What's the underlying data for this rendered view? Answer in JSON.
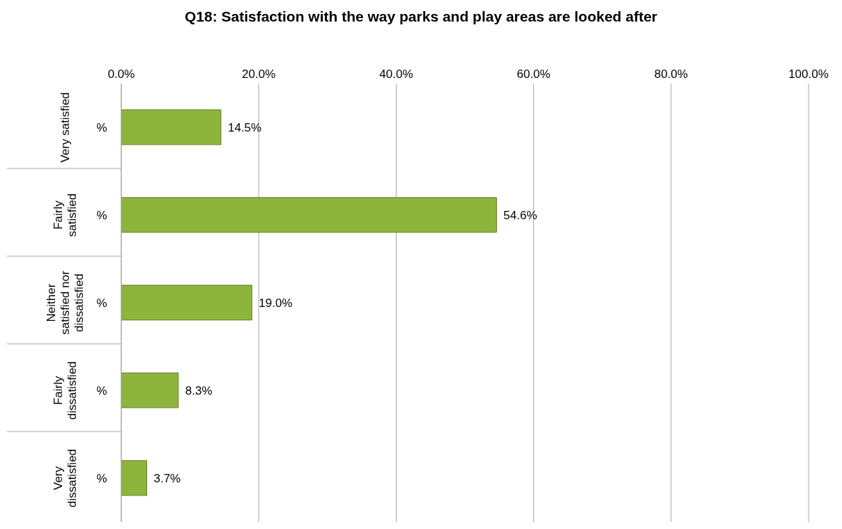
{
  "chart_data": {
    "type": "bar",
    "orientation": "horizontal",
    "title": "Q18: Satisfaction with the way parks and play areas are looked after",
    "categories": [
      "Very satisfied",
      "Fairly satisfied",
      "Neither satisfied nor dissatisfied",
      "Fairly dissatisfied",
      "Very dissatisfied"
    ],
    "series": [
      {
        "name": "%",
        "color": "#8db53c",
        "values": [
          14.5,
          54.6,
          19.0,
          8.3,
          3.7
        ],
        "value_labels": [
          "14.5%",
          "54.6%",
          "19.0%",
          "8.3%",
          "3.7%"
        ]
      }
    ],
    "xlim": [
      0,
      100
    ],
    "xticks": [
      {
        "value": 0,
        "label": "0.0%"
      },
      {
        "value": 20,
        "label": "20.0%"
      },
      {
        "value": 40,
        "label": "40.0%"
      },
      {
        "value": 60,
        "label": "60.0%"
      },
      {
        "value": 80,
        "label": "80.0%"
      },
      {
        "value": 100,
        "label": "100.0%"
      }
    ],
    "grid": "x",
    "legend": false
  }
}
